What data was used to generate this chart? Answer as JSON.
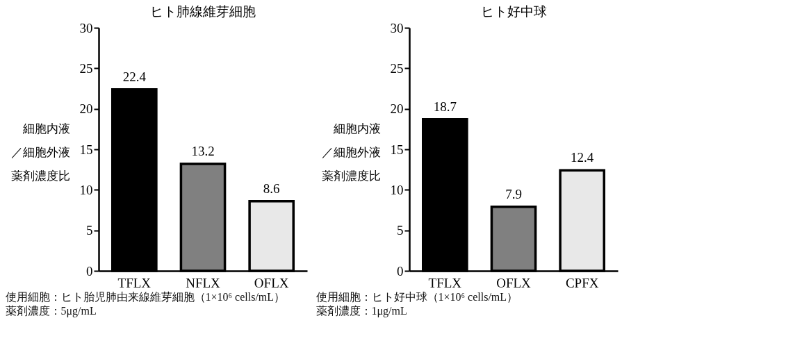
{
  "chart_data": [
    {
      "type": "bar",
      "title": "ヒト肺線維芽細胞",
      "ylabel": "細胞内液／細胞外液薬剤濃度比",
      "categories": [
        "TFLX",
        "NFLX",
        "OFLX"
      ],
      "values": [
        22.4,
        13.2,
        8.6
      ],
      "colors": [
        "#000000",
        "#808080",
        "#e8e8e8"
      ],
      "ylim": [
        0,
        30
      ],
      "yticks": [
        0,
        5,
        10,
        15,
        20,
        25,
        30
      ],
      "data_labels": true,
      "annotations": [
        "使用細胞：ヒト胎児肺由来線維芽細胞（1×10⁶ cells/mL）",
        "薬剤濃度：5μg/mL"
      ]
    },
    {
      "type": "bar",
      "title": "ヒト好中球",
      "ylabel": "細胞内液／細胞外液薬剤濃度比",
      "categories": [
        "TFLX",
        "OFLX",
        "CPFX"
      ],
      "values": [
        18.7,
        7.9,
        12.4
      ],
      "colors": [
        "#000000",
        "#808080",
        "#e8e8e8"
      ],
      "ylim": [
        0,
        30
      ],
      "yticks": [
        0,
        5,
        10,
        15,
        20,
        25,
        30
      ],
      "data_labels": true,
      "annotations": [
        "使用細胞：ヒト好中球（1×10⁶ cells/mL）",
        "薬剤濃度：1μg/mL"
      ]
    }
  ]
}
